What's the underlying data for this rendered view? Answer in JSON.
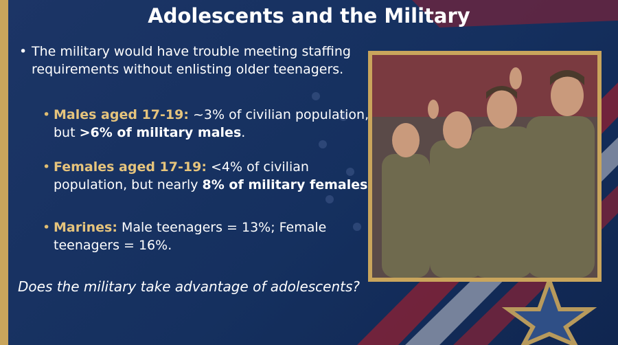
{
  "title": "Adolescents and the Military",
  "bullet": "The military would have trouble meeting staffing requirements without enlisting older teenagers.",
  "sub_bullets": [
    {
      "runs": [
        {
          "text": "Males aged 17-19:",
          "style": "label"
        },
        {
          "text": " ~3% of civilian population, but ",
          "style": "plain"
        },
        {
          "text": ">6% of military males",
          "style": "bold"
        },
        {
          "text": ".",
          "style": "plain"
        }
      ]
    },
    {
      "runs": [
        {
          "text": "Females aged 17-19:",
          "style": "label"
        },
        {
          "text": " <4% of civilian population, but nearly ",
          "style": "plain"
        },
        {
          "text": "8% of military females",
          "style": "bold"
        },
        {
          "text": ".",
          "style": "plain"
        }
      ]
    },
    {
      "runs": [
        {
          "text": "Marines:",
          "style": "label"
        },
        {
          "text": " Male teenagers = 13%; Female teenagers = 16%.",
          "style": "plain"
        }
      ]
    }
  ],
  "question": "Does the military take advantage of adolescents?"
}
